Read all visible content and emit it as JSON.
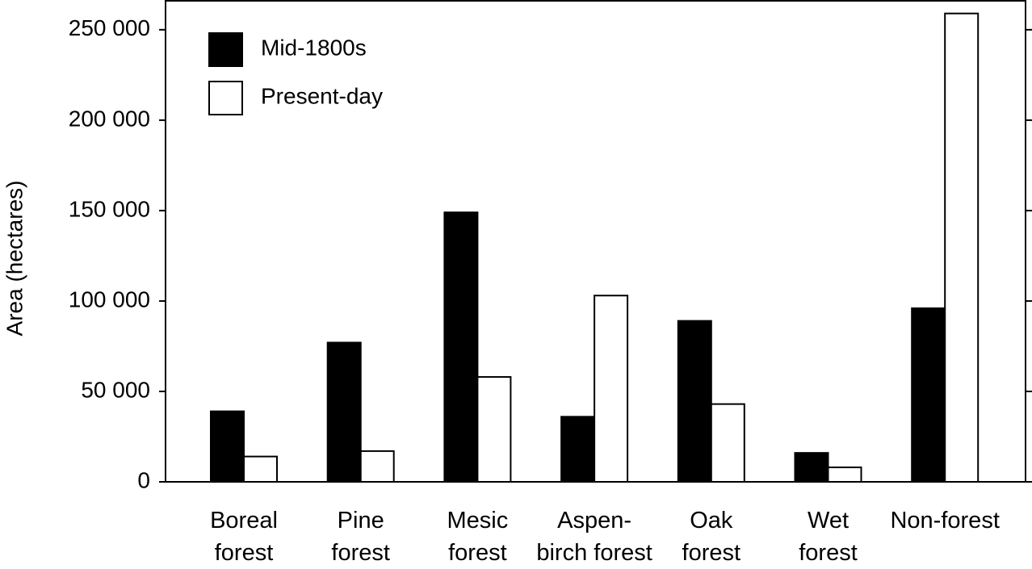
{
  "chart_data": {
    "type": "bar",
    "y_label": "Area (hectares)",
    "categories": [
      "Boreal\nforest",
      "Pine\nforest",
      "Mesic\nforest",
      "Aspen-\nbirch forest",
      "Oak\nforest",
      "Wet\nforest",
      "Non-forest"
    ],
    "series": [
      {
        "name": "Mid-1800s",
        "color": "#000000",
        "values": [
          39000,
          77000,
          149000,
          36000,
          89000,
          16000,
          96000
        ]
      },
      {
        "name": "Present-day",
        "color": "#ffffff",
        "values": [
          14000,
          17000,
          58000,
          103000,
          43000,
          8000,
          259000
        ]
      }
    ],
    "ylim": [
      0,
      266000
    ],
    "yticks": [
      0,
      {
        "value": 50000,
        "label": "50 000"
      },
      {
        "value": 100000,
        "label": "100 000"
      },
      {
        "value": 150000,
        "label": "150 000"
      },
      {
        "value": 200000,
        "label": "200 000"
      },
      {
        "value": 250000,
        "label": "250 000"
      }
    ],
    "legend": "upper-left"
  }
}
